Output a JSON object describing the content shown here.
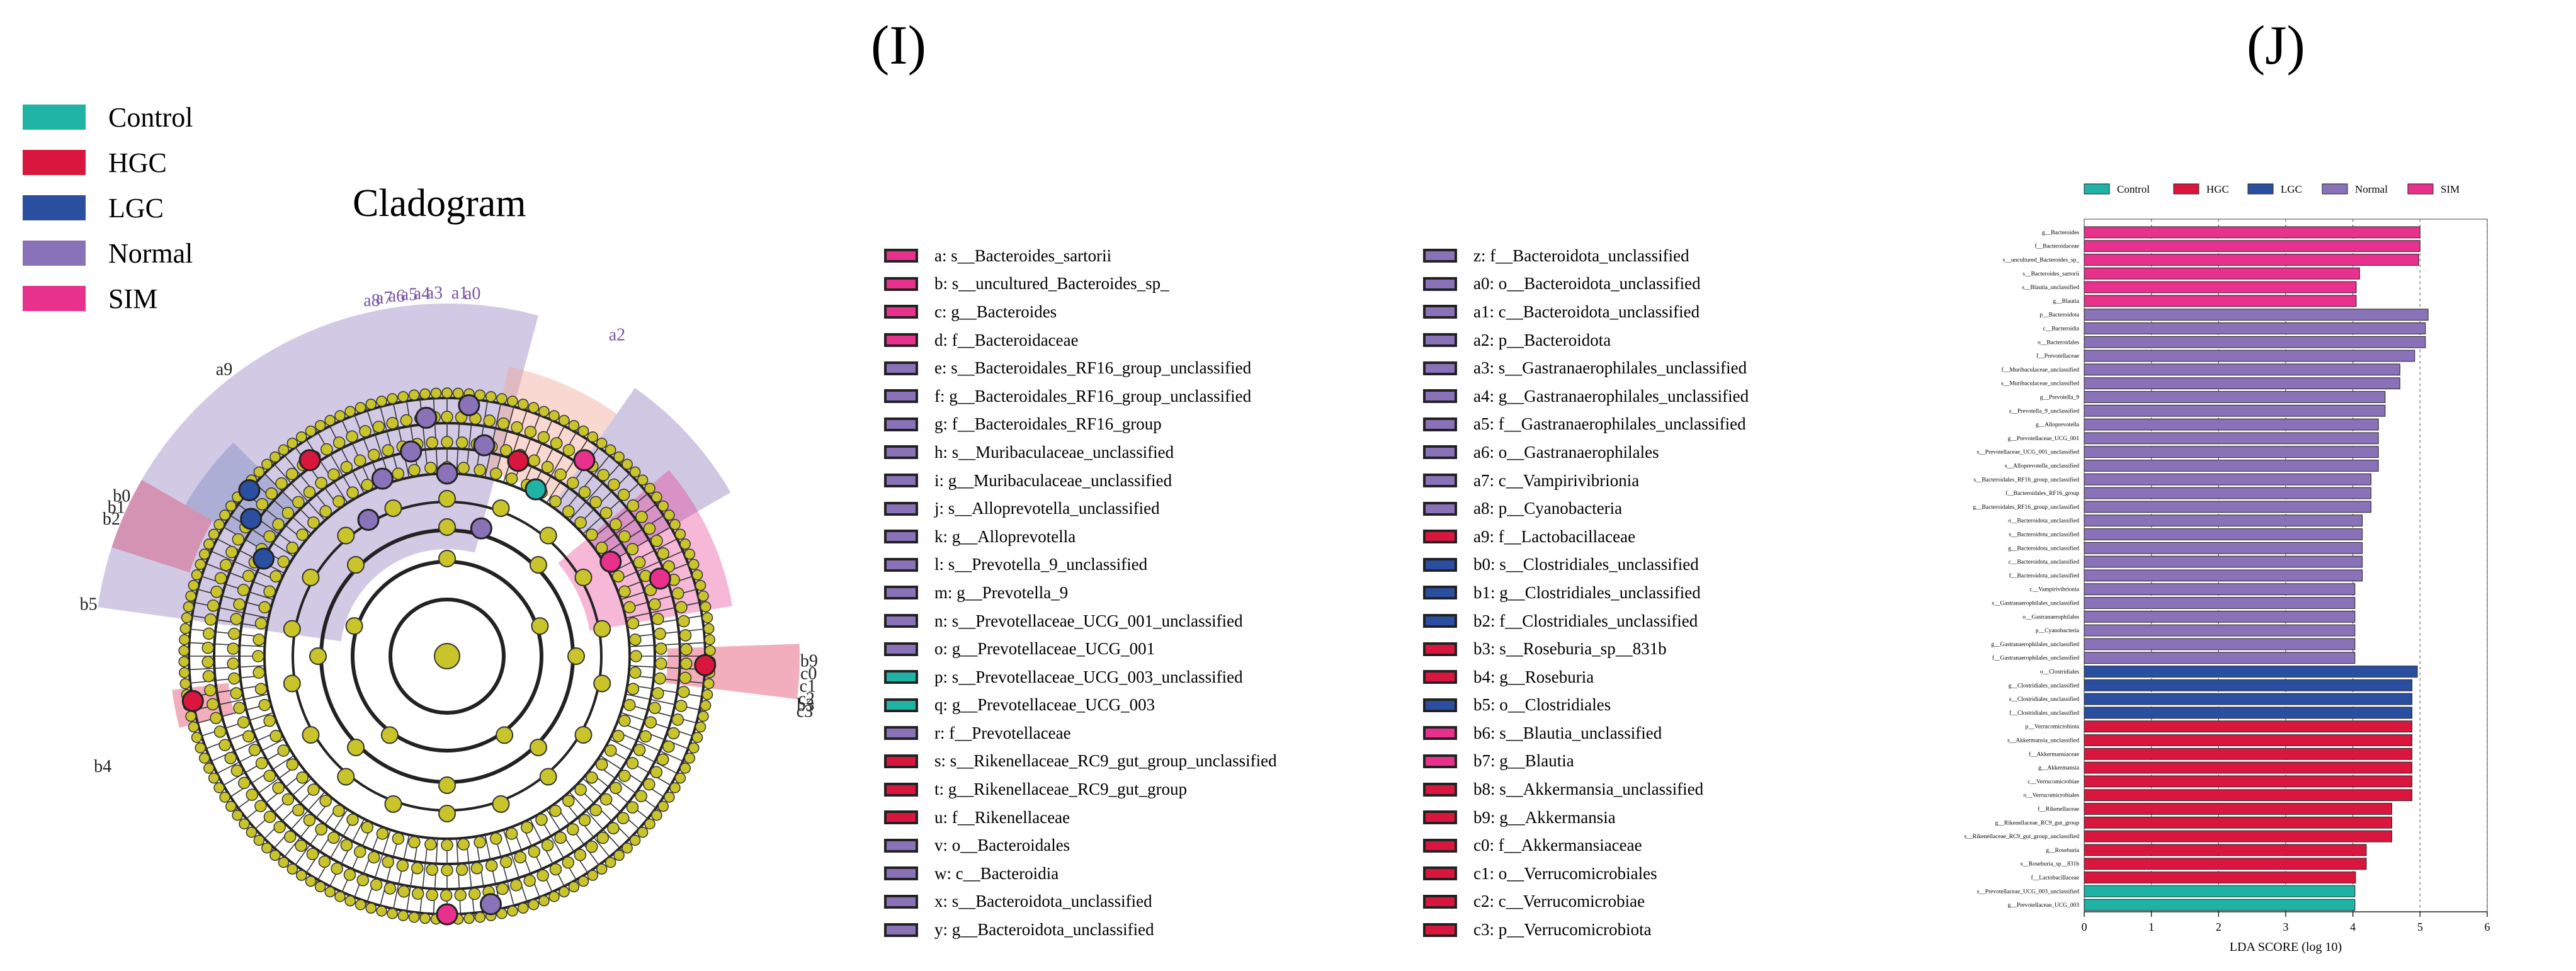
{
  "panels": {
    "left_letter": "(I)",
    "right_letter": "(J)"
  },
  "groups": [
    {
      "name": "Control",
      "color": "#1fb3a6"
    },
    {
      "name": "HGC",
      "color": "#d9173e"
    },
    {
      "name": "LGC",
      "color": "#2b4fa0"
    },
    {
      "name": "Normal",
      "color": "#8a72b8"
    },
    {
      "name": "SIM",
      "color": "#e8318d"
    }
  ],
  "cladogram": {
    "title": "Cladogram"
  },
  "key_col1": [
    {
      "id": "a",
      "text": "a: s__Bacteroides_sartorii",
      "color": "#e8318d"
    },
    {
      "id": "b",
      "text": "b: s__uncultured_Bacteroides_sp_",
      "color": "#e8318d"
    },
    {
      "id": "c",
      "text": "c: g__Bacteroides",
      "color": "#e8318d"
    },
    {
      "id": "d",
      "text": "d: f__Bacteroidaceae",
      "color": "#e8318d"
    },
    {
      "id": "e",
      "text": "e: s__Bacteroidales_RF16_group_unclassified",
      "color": "#8a72b8"
    },
    {
      "id": "f",
      "text": "f: g__Bacteroidales_RF16_group_unclassified",
      "color": "#8a72b8"
    },
    {
      "id": "g",
      "text": "g: f__Bacteroidales_RF16_group",
      "color": "#8a72b8"
    },
    {
      "id": "h",
      "text": "h: s__Muribaculaceae_unclassified",
      "color": "#8a72b8"
    },
    {
      "id": "i",
      "text": "i: g__Muribaculaceae_unclassified",
      "color": "#8a72b8"
    },
    {
      "id": "j",
      "text": "j: s__Alloprevotella_unclassified",
      "color": "#8a72b8"
    },
    {
      "id": "k",
      "text": "k: g__Alloprevotella",
      "color": "#8a72b8"
    },
    {
      "id": "l",
      "text": "l: s__Prevotella_9_unclassified",
      "color": "#8a72b8"
    },
    {
      "id": "m",
      "text": "m: g__Prevotella_9",
      "color": "#8a72b8"
    },
    {
      "id": "n",
      "text": "n: s__Prevotellaceae_UCG_001_unclassified",
      "color": "#8a72b8"
    },
    {
      "id": "o",
      "text": "o: g__Prevotellaceae_UCG_001",
      "color": "#8a72b8"
    },
    {
      "id": "p",
      "text": "p: s__Prevotellaceae_UCG_003_unclassified",
      "color": "#1fb3a6"
    },
    {
      "id": "q",
      "text": "q: g__Prevotellaceae_UCG_003",
      "color": "#1fb3a6"
    },
    {
      "id": "r",
      "text": "r: f__Prevotellaceae",
      "color": "#8a72b8"
    },
    {
      "id": "s",
      "text": "s: s__Rikenellaceae_RC9_gut_group_unclassified",
      "color": "#d9173e"
    },
    {
      "id": "t",
      "text": "t: g__Rikenellaceae_RC9_gut_group",
      "color": "#d9173e"
    },
    {
      "id": "u",
      "text": "u: f__Rikenellaceae",
      "color": "#d9173e"
    },
    {
      "id": "v",
      "text": "v: o__Bacteroidales",
      "color": "#8a72b8"
    },
    {
      "id": "w",
      "text": "w: c__Bacteroidia",
      "color": "#8a72b8"
    },
    {
      "id": "x",
      "text": "x: s__Bacteroidota_unclassified",
      "color": "#8a72b8"
    },
    {
      "id": "y",
      "text": "y: g__Bacteroidota_unclassified",
      "color": "#8a72b8"
    }
  ],
  "key_col2": [
    {
      "id": "z",
      "text": "z: f__Bacteroidota_unclassified",
      "color": "#8a72b8"
    },
    {
      "id": "a0",
      "text": "a0: o__Bacteroidota_unclassified",
      "color": "#8a72b8"
    },
    {
      "id": "a1",
      "text": "a1: c__Bacteroidota_unclassified",
      "color": "#8a72b8"
    },
    {
      "id": "a2",
      "text": "a2: p__Bacteroidota",
      "color": "#8a72b8"
    },
    {
      "id": "a3",
      "text": "a3: s__Gastranaerophilales_unclassified",
      "color": "#8a72b8"
    },
    {
      "id": "a4",
      "text": "a4: g__Gastranaerophilales_unclassified",
      "color": "#8a72b8"
    },
    {
      "id": "a5",
      "text": "a5: f__Gastranaerophilales_unclassified",
      "color": "#8a72b8"
    },
    {
      "id": "a6",
      "text": "a6: o__Gastranaerophilales",
      "color": "#8a72b8"
    },
    {
      "id": "a7",
      "text": "a7: c__Vampirivibrionia",
      "color": "#8a72b8"
    },
    {
      "id": "a8",
      "text": "a8: p__Cyanobacteria",
      "color": "#8a72b8"
    },
    {
      "id": "a9",
      "text": "a9: f__Lactobacillaceae",
      "color": "#d9173e"
    },
    {
      "id": "b0",
      "text": "b0: s__Clostridiales_unclassified",
      "color": "#2b4fa0"
    },
    {
      "id": "b1",
      "text": "b1: g__Clostridiales_unclassified",
      "color": "#2b4fa0"
    },
    {
      "id": "b2",
      "text": "b2: f__Clostridiales_unclassified",
      "color": "#2b4fa0"
    },
    {
      "id": "b3",
      "text": "b3: s__Roseburia_sp__831b",
      "color": "#d9173e"
    },
    {
      "id": "b4",
      "text": "b4: g__Roseburia",
      "color": "#d9173e"
    },
    {
      "id": "b5",
      "text": "b5: o__Clostridiales",
      "color": "#2b4fa0"
    },
    {
      "id": "b6",
      "text": "b6: s__Blautia_unclassified",
      "color": "#e8318d"
    },
    {
      "id": "b7",
      "text": "b7: g__Blautia",
      "color": "#e8318d"
    },
    {
      "id": "b8",
      "text": "b8: s__Akkermansia_unclassified",
      "color": "#d9173e"
    },
    {
      "id": "b9",
      "text": "b9: g__Akkermansia",
      "color": "#d9173e"
    },
    {
      "id": "c0",
      "text": "c0: f__Akkermansiaceae",
      "color": "#d9173e"
    },
    {
      "id": "c1",
      "text": "c1: o__Verrucomicrobiales",
      "color": "#d9173e"
    },
    {
      "id": "c2",
      "text": "c2: c__Verrucomicrobiae",
      "color": "#d9173e"
    },
    {
      "id": "c3",
      "text": "c3: p__Verrucomicrobiota",
      "color": "#d9173e"
    }
  ],
  "chart_data": {
    "type": "bar",
    "orientation": "horizontal",
    "xlabel": "LDA SCORE (log 10)",
    "xlim": [
      0,
      6
    ],
    "xticks": [
      0,
      1,
      2,
      3,
      4,
      5,
      6
    ],
    "legend": [
      "Control",
      "HGC",
      "LGC",
      "Normal",
      "SIM"
    ],
    "legend_placement": "top",
    "grid": true,
    "bars": [
      {
        "label": "g__Bacteroides",
        "value": 5.0,
        "group": "SIM"
      },
      {
        "label": "f__Bacteroidaceae",
        "value": 5.0,
        "group": "SIM"
      },
      {
        "label": "s__uncultured_Bacteroides_sp_",
        "value": 4.98,
        "group": "SIM"
      },
      {
        "label": "s__Bacteroides_sartorii",
        "value": 4.1,
        "group": "SIM"
      },
      {
        "label": "s__Blautia_unclassified",
        "value": 4.05,
        "group": "SIM"
      },
      {
        "label": "g__Blautia",
        "value": 4.05,
        "group": "SIM"
      },
      {
        "label": "p__Bacteroidota",
        "value": 5.12,
        "group": "Normal"
      },
      {
        "label": "c__Bacteroidia",
        "value": 5.08,
        "group": "Normal"
      },
      {
        "label": "o__Bacteroidales",
        "value": 5.08,
        "group": "Normal"
      },
      {
        "label": "f__Prevotellaceae",
        "value": 4.92,
        "group": "Normal"
      },
      {
        "label": "f__Muribaculaceae_unclassified",
        "value": 4.7,
        "group": "Normal"
      },
      {
        "label": "s__Muribaculaceae_unclassified",
        "value": 4.7,
        "group": "Normal"
      },
      {
        "label": "g__Prevotella_9",
        "value": 4.48,
        "group": "Normal"
      },
      {
        "label": "s__Prevotella_9_unclassified",
        "value": 4.48,
        "group": "Normal"
      },
      {
        "label": "g__Alloprevotella",
        "value": 4.38,
        "group": "Normal"
      },
      {
        "label": "g__Prevotellaceae_UCG_001",
        "value": 4.38,
        "group": "Normal"
      },
      {
        "label": "s__Prevotellaceae_UCG_001_unclassified",
        "value": 4.38,
        "group": "Normal"
      },
      {
        "label": "s__Alloprevotella_unclassified",
        "value": 4.38,
        "group": "Normal"
      },
      {
        "label": "s__Bacteroidales_RF16_group_unclassified",
        "value": 4.27,
        "group": "Normal"
      },
      {
        "label": "f__Bacteroidales_RF16_group",
        "value": 4.27,
        "group": "Normal"
      },
      {
        "label": "g__Bacteroidales_RF16_group_unclassified",
        "value": 4.27,
        "group": "Normal"
      },
      {
        "label": "o__Bacteroidota_unclassified",
        "value": 4.14,
        "group": "Normal"
      },
      {
        "label": "s__Bacteroidota_unclassified",
        "value": 4.14,
        "group": "Normal"
      },
      {
        "label": "g__Bacteroidota_unclassified",
        "value": 4.14,
        "group": "Normal"
      },
      {
        "label": "c__Bacteroidota_unclassified",
        "value": 4.14,
        "group": "Normal"
      },
      {
        "label": "f__Bacteroidota_unclassified",
        "value": 4.14,
        "group": "Normal"
      },
      {
        "label": "c__Vampirivibrionia",
        "value": 4.03,
        "group": "Normal"
      },
      {
        "label": "s__Gastranaerophilales_unclassified",
        "value": 4.03,
        "group": "Normal"
      },
      {
        "label": "o__Gastranaerophilales",
        "value": 4.03,
        "group": "Normal"
      },
      {
        "label": "p__Cyanobacteria",
        "value": 4.03,
        "group": "Normal"
      },
      {
        "label": "g__Gastranaerophilales_unclassified",
        "value": 4.03,
        "group": "Normal"
      },
      {
        "label": "f__Gastranaerophilales_unclassified",
        "value": 4.03,
        "group": "Normal"
      },
      {
        "label": "o__Clostridiales",
        "value": 4.96,
        "group": "LGC"
      },
      {
        "label": "g__Clostridiales_unclassified",
        "value": 4.88,
        "group": "LGC"
      },
      {
        "label": "s__Clostridiales_unclassified",
        "value": 4.88,
        "group": "LGC"
      },
      {
        "label": "f__Clostridiales_unclassified",
        "value": 4.88,
        "group": "LGC"
      },
      {
        "label": "p__Verrucomicrobiota",
        "value": 4.88,
        "group": "HGC"
      },
      {
        "label": "s__Akkermansia_unclassified",
        "value": 4.88,
        "group": "HGC"
      },
      {
        "label": "f__Akkermansiaceae",
        "value": 4.88,
        "group": "HGC"
      },
      {
        "label": "g__Akkermansia",
        "value": 4.88,
        "group": "HGC"
      },
      {
        "label": "c__Verrucomicrobiae",
        "value": 4.88,
        "group": "HGC"
      },
      {
        "label": "o__Verrucomicrobiales",
        "value": 4.88,
        "group": "HGC"
      },
      {
        "label": "f__Rikenellaceae",
        "value": 4.58,
        "group": "HGC"
      },
      {
        "label": "g__Rikenellaceae_RC9_gut_group",
        "value": 4.58,
        "group": "HGC"
      },
      {
        "label": "s__Rikenellaceae_RC9_gut_group_unclassified",
        "value": 4.58,
        "group": "HGC"
      },
      {
        "label": "g__Roseburia",
        "value": 4.2,
        "group": "HGC"
      },
      {
        "label": "s__Roseburia_sp__831b",
        "value": 4.2,
        "group": "HGC"
      },
      {
        "label": "f__Lactobacillaceae",
        "value": 4.04,
        "group": "HGC"
      },
      {
        "label": "s__Prevotellaceae_UCG_003_unclassified",
        "value": 4.03,
        "group": "Control"
      },
      {
        "label": "g__Prevotellaceae_UCG_003",
        "value": 4.03,
        "group": "Control"
      }
    ]
  }
}
